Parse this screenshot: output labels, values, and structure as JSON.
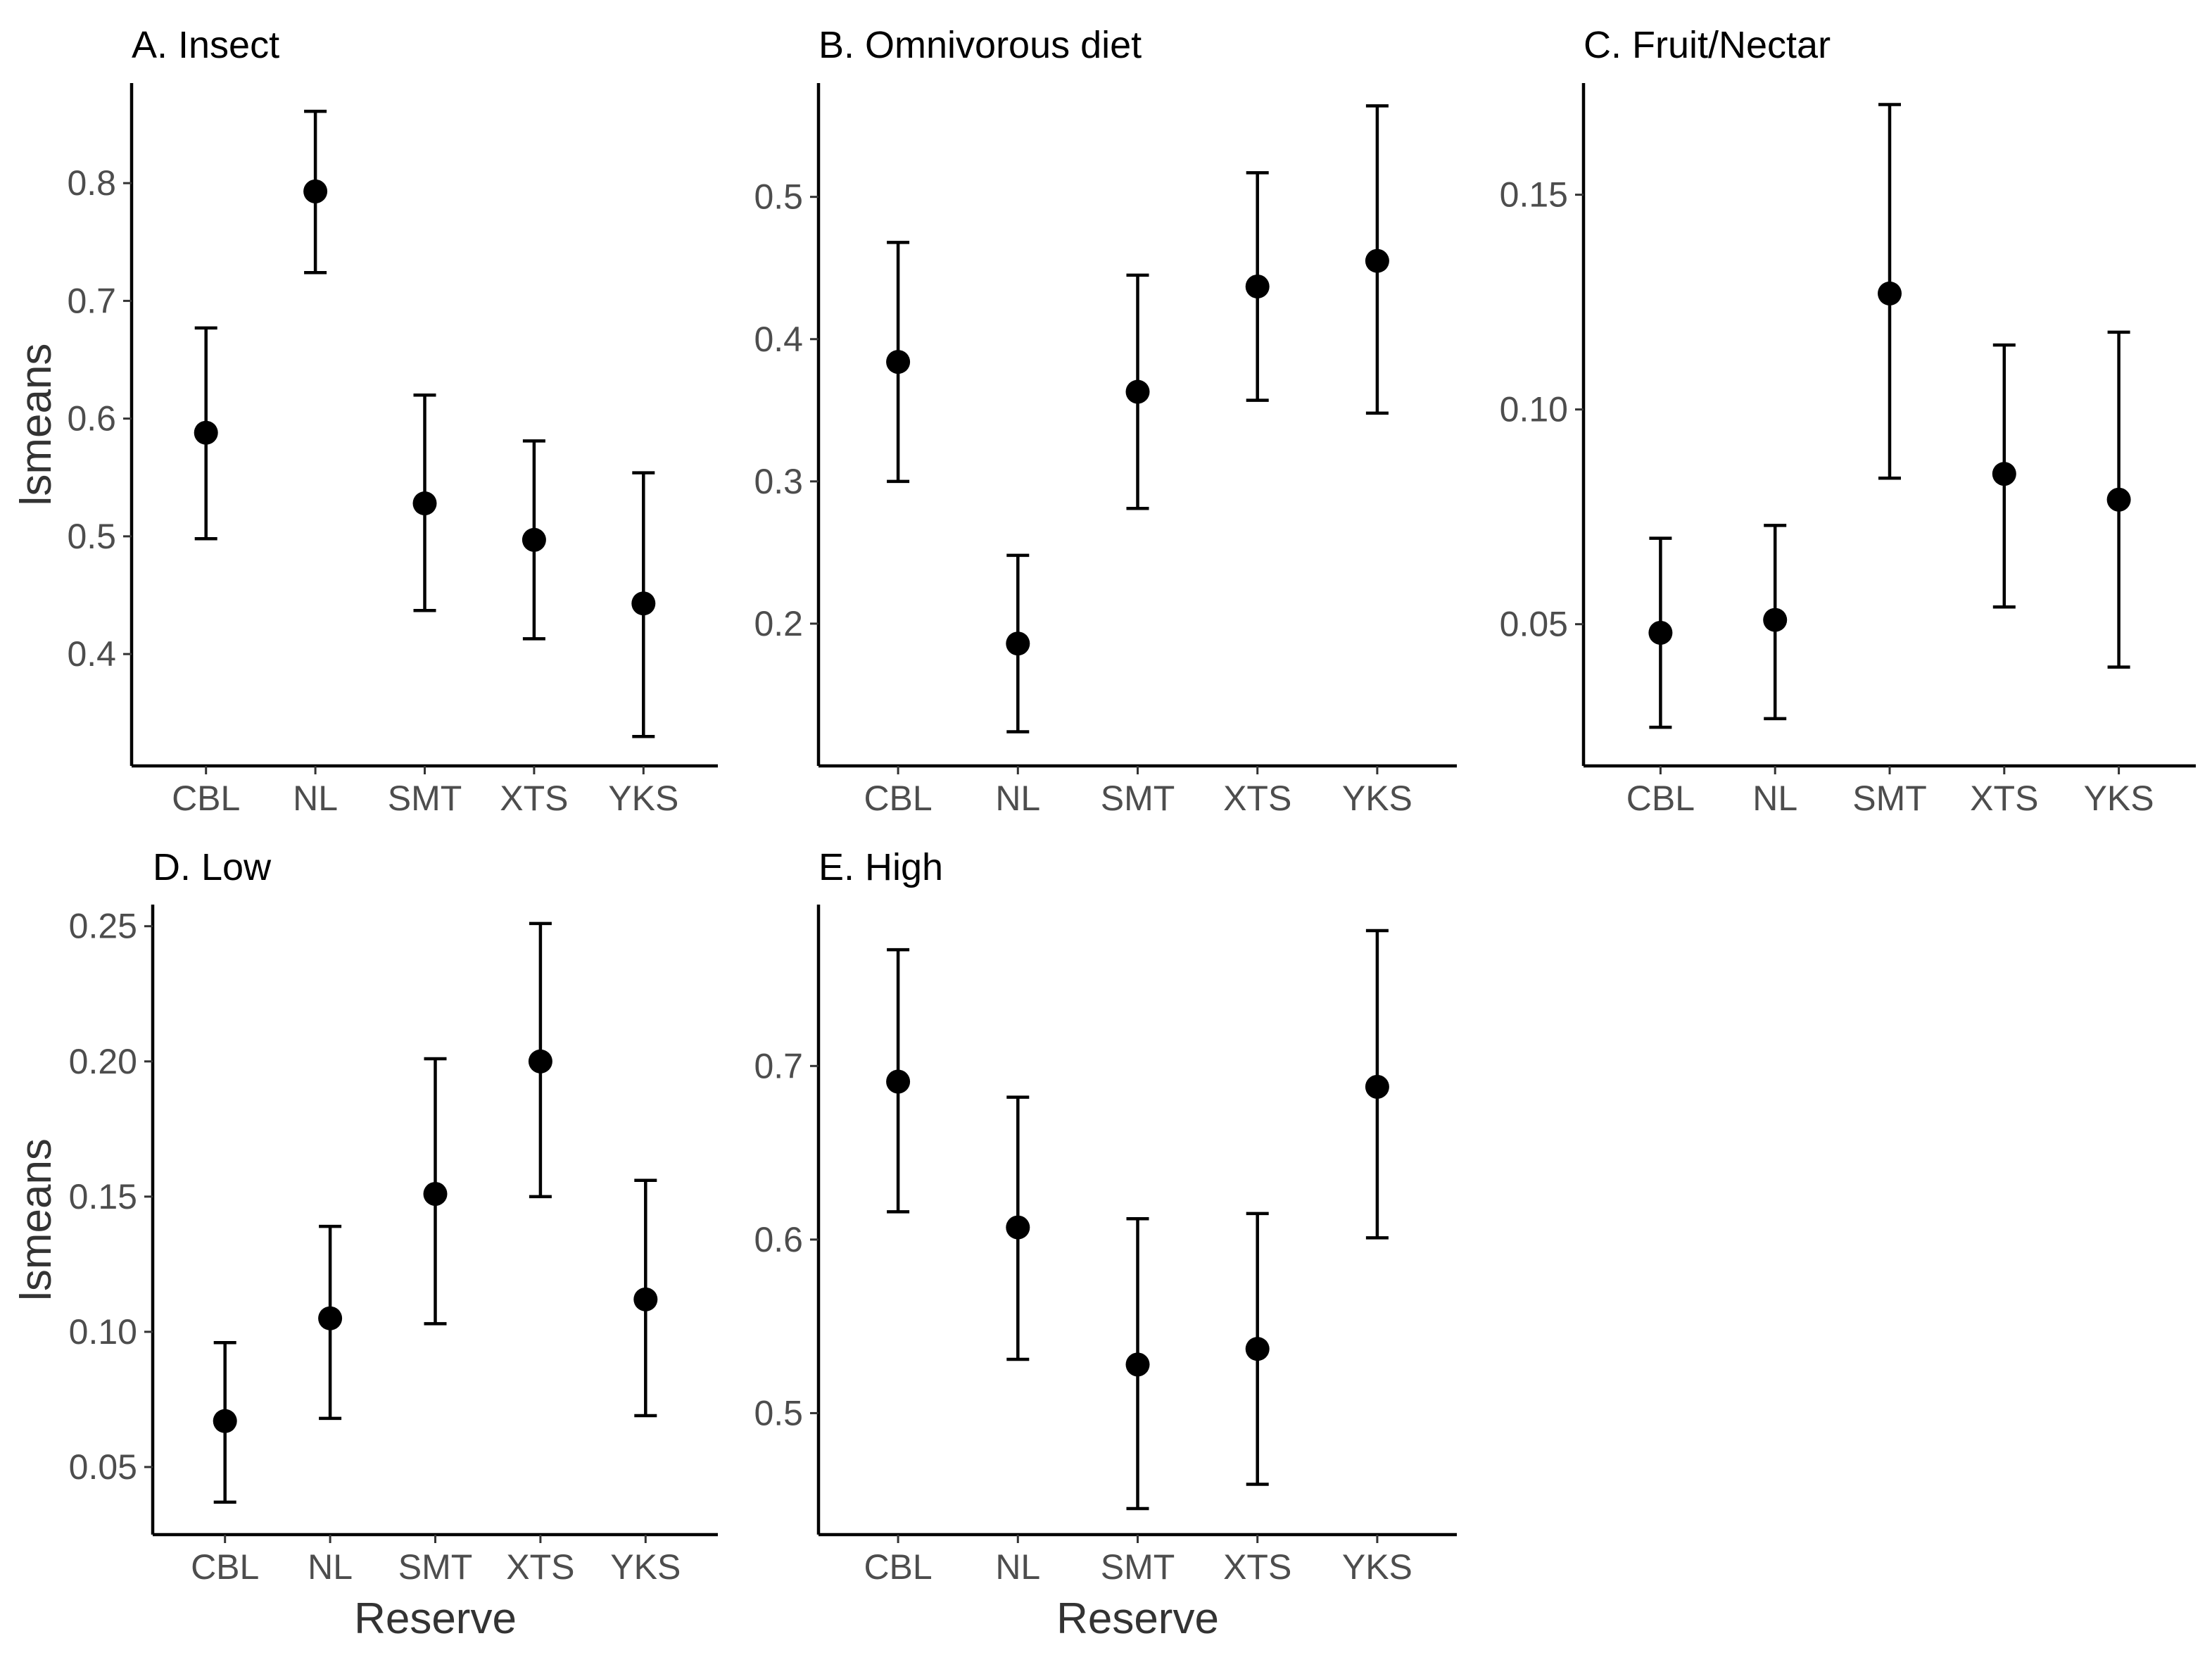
{
  "chart_data": [
    {
      "type": "scatter",
      "title": "A. Insect",
      "xlabel": "",
      "ylabel": "lsmeans",
      "categories": [
        "CBL",
        "NL",
        "SMT",
        "XTS",
        "YKS"
      ],
      "values": [
        0.588,
        0.793,
        0.528,
        0.497,
        0.443
      ],
      "lower": [
        0.498,
        0.724,
        0.437,
        0.413,
        0.33
      ],
      "upper": [
        0.677,
        0.861,
        0.62,
        0.581,
        0.554
      ],
      "ylim": [
        0.305,
        0.885
      ],
      "yticks": [
        0.4,
        0.5,
        0.6,
        0.7,
        0.8
      ],
      "ytick_labels": [
        "0.4",
        "0.5",
        "0.6",
        "0.7",
        "0.8"
      ]
    },
    {
      "type": "scatter",
      "title": "B. Omnivorous diet",
      "xlabel": "",
      "ylabel": "",
      "categories": [
        "CBL",
        "NL",
        "SMT",
        "XTS",
        "YKS"
      ],
      "values": [
        0.384,
        0.186,
        0.363,
        0.437,
        0.455
      ],
      "lower": [
        0.3,
        0.124,
        0.281,
        0.357,
        0.348
      ],
      "upper": [
        0.468,
        0.248,
        0.445,
        0.517,
        0.564
      ],
      "ylim": [
        0.1,
        0.58
      ],
      "yticks": [
        0.2,
        0.3,
        0.4,
        0.5
      ],
      "ytick_labels": [
        "0.2",
        "0.3",
        "0.4",
        "0.5"
      ]
    },
    {
      "type": "scatter",
      "title": "C. Fruit/Nectar",
      "xlabel": "",
      "ylabel": "",
      "categories": [
        "CBL",
        "NL",
        "SMT",
        "XTS",
        "YKS"
      ],
      "values": [
        0.048,
        0.051,
        0.127,
        0.085,
        0.079
      ],
      "lower": [
        0.026,
        0.028,
        0.084,
        0.054,
        0.04
      ],
      "upper": [
        0.07,
        0.073,
        0.171,
        0.115,
        0.118
      ],
      "ylim": [
        0.017,
        0.176
      ],
      "yticks": [
        0.05,
        0.1,
        0.15
      ],
      "ytick_labels": [
        "0.05",
        "0.10",
        "0.15"
      ]
    },
    {
      "type": "scatter",
      "title": "D. Low",
      "xlabel": "Reserve",
      "ylabel": "lsmeans",
      "categories": [
        "CBL",
        "NL",
        "SMT",
        "XTS",
        "YKS"
      ],
      "values": [
        0.067,
        0.105,
        0.151,
        0.2,
        0.112
      ],
      "lower": [
        0.037,
        0.068,
        0.103,
        0.15,
        0.069
      ],
      "upper": [
        0.096,
        0.139,
        0.201,
        0.251,
        0.156
      ],
      "ylim": [
        0.025,
        0.258
      ],
      "yticks": [
        0.05,
        0.1,
        0.15,
        0.2,
        0.25
      ],
      "ytick_labels": [
        "0.05",
        "0.10",
        "0.15",
        "0.20",
        "0.25"
      ]
    },
    {
      "type": "scatter",
      "title": "E. High",
      "xlabel": "Reserve",
      "ylabel": "",
      "categories": [
        "CBL",
        "NL",
        "SMT",
        "XTS",
        "YKS"
      ],
      "values": [
        0.691,
        0.607,
        0.528,
        0.537,
        0.688
      ],
      "lower": [
        0.616,
        0.531,
        0.445,
        0.459,
        0.601
      ],
      "upper": [
        0.767,
        0.682,
        0.612,
        0.615,
        0.778
      ],
      "ylim": [
        0.43,
        0.793
      ],
      "yticks": [
        0.5,
        0.6,
        0.7
      ],
      "ytick_labels": [
        "0.5",
        "0.6",
        "0.7"
      ]
    }
  ]
}
